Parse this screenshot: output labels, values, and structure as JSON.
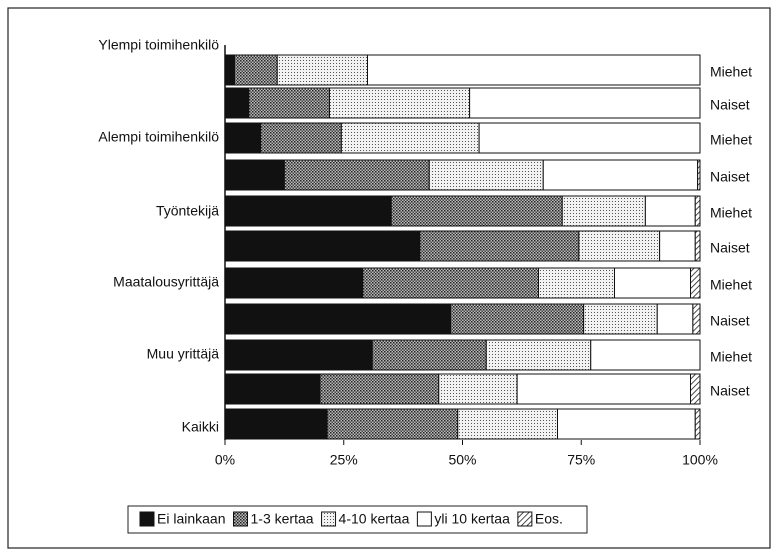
{
  "chart_data": {
    "type": "stacked-bar-horizontal",
    "group_labels": [
      "Ylempi toimihenkilö",
      "Alempi toimihenkilö",
      "Työntekijä",
      "Maatalousyrittäjä",
      "Muu yrittäjä",
      "Kaikki"
    ],
    "categories": [
      "Miehet",
      "Naiset",
      "Miehet",
      "Naiset",
      "Miehet",
      "Naiset",
      "Miehet",
      "Naiset",
      "Miehet",
      "Naiset",
      null
    ],
    "series": [
      {
        "name": "Ei lainkaan",
        "color": "#111111",
        "pattern": "solid",
        "values": [
          2,
          5,
          7.5,
          12.5,
          35,
          41,
          29,
          47.5,
          31,
          20,
          21.5
        ]
      },
      {
        "name": "1-3 kertaa",
        "color": "#8a8a8a",
        "pattern": "dots-dense",
        "values": [
          9,
          17,
          17,
          30.5,
          36,
          33.5,
          37,
          28,
          24,
          25,
          27.5
        ]
      },
      {
        "name": "4-10 kertaa",
        "color": "#d6d6d6",
        "pattern": "dots-light",
        "values": [
          19,
          29.5,
          29,
          24,
          17.5,
          17,
          16,
          15.5,
          22,
          16.5,
          21
        ]
      },
      {
        "name": "yli 10 kertaa",
        "color": "#ffffff",
        "pattern": "solid",
        "values": [
          70,
          48.5,
          46.5,
          32.5,
          10.5,
          7.5,
          16,
          7.5,
          23,
          36.5,
          29
        ]
      },
      {
        "name": "Eos.",
        "color": "#ffffff",
        "pattern": "hatch",
        "values": [
          0,
          0,
          0,
          0.5,
          1,
          1,
          2,
          1.5,
          0,
          2,
          1
        ]
      }
    ],
    "xlim": [
      0,
      100
    ],
    "xticks": [
      {
        "value": 0,
        "label": "0%"
      },
      {
        "value": 25,
        "label": "25%"
      },
      {
        "value": 50,
        "label": "50%"
      },
      {
        "value": 75,
        "label": "75%"
      },
      {
        "value": 100,
        "label": "100%"
      }
    ],
    "legend": "bottom"
  }
}
